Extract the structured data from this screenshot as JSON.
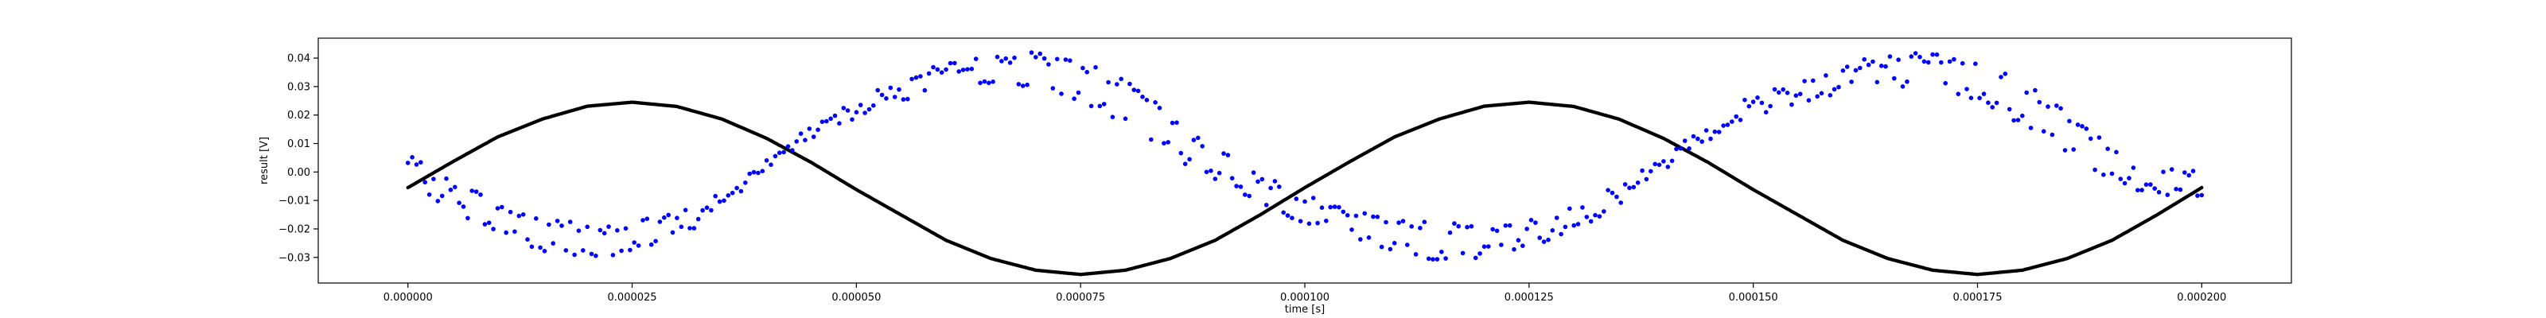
{
  "chart_data": {
    "type": "scatter",
    "title": "",
    "xlabel": "time [s]",
    "ylabel": "result [V]",
    "xlim": [
      -1e-05,
      0.00021
    ],
    "ylim": [
      -0.039,
      0.047
    ],
    "grid": false,
    "x_ticks": [
      0.0,
      2.5e-05,
      5e-05,
      7.5e-05,
      0.0001,
      0.000125,
      0.00015,
      0.000175,
      0.0002
    ],
    "x_tick_labels": [
      "0.000000",
      "0.000025",
      "0.000050",
      "0.000075",
      "0.000100",
      "0.000125",
      "0.000150",
      "0.000175",
      "0.000200"
    ],
    "y_ticks": [
      -0.03,
      -0.02,
      -0.01,
      0.0,
      0.01,
      0.02,
      0.03,
      0.04
    ],
    "y_tick_labels": [
      "−0.03",
      "−0.02",
      "−0.01",
      "0.00",
      "0.01",
      "0.02",
      "0.03",
      "0.04"
    ],
    "series": [
      {
        "color": "#000000",
        "marker_size": 2.2,
        "x": [
          0.0,
          5e-06,
          1e-05,
          1.5e-05,
          2e-05,
          2.5e-05,
          3e-05,
          3.5e-05,
          4e-05,
          4.5e-05,
          5e-05,
          5.5e-05,
          6e-05,
          6.5e-05,
          7e-05,
          7.5e-05,
          8e-05,
          8.5e-05,
          9e-05,
          9.5e-05,
          0.0001,
          0.000105,
          0.00011,
          0.000115,
          0.00012,
          0.000125,
          0.00013,
          0.000135,
          0.00014,
          0.000145,
          0.00015,
          0.000155,
          0.00016,
          0.000165,
          0.00017,
          0.000175,
          0.00018,
          0.000185,
          0.00019,
          0.000195,
          0.0002
        ],
        "y": [
          -0.0055,
          0.0036,
          0.0123,
          0.0186,
          0.0231,
          0.0245,
          0.023,
          0.0186,
          0.0118,
          0.0033,
          -0.0062,
          -0.0151,
          -0.024,
          -0.0304,
          -0.0345,
          -0.036,
          -0.0345,
          -0.0304,
          -0.024,
          -0.0151,
          -0.0055,
          0.0036,
          0.0123,
          0.0186,
          0.0231,
          0.0245,
          0.023,
          0.0186,
          0.0118,
          0.0033,
          -0.0062,
          -0.0151,
          -0.024,
          -0.0304,
          -0.0345,
          -0.036,
          -0.0345,
          -0.0304,
          -0.024,
          -0.0151,
          -0.0055
        ]
      },
      {
        "color": "#0000ff",
        "marker_size": 2.8,
        "x": [
          0.0,
          2.5e-06,
          5e-06,
          7.5e-06,
          1e-05,
          1.25e-05,
          1.5e-05,
          1.75e-05,
          2e-05,
          2.25e-05,
          2.5e-05,
          2.75e-05,
          3e-05,
          3.25e-05,
          3.5e-05,
          3.75e-05,
          4e-05,
          4.25e-05,
          4.5e-05,
          4.75e-05,
          5e-05,
          5.25e-05,
          5.5e-05,
          5.75e-05,
          6e-05,
          6.25e-05,
          6.5e-05,
          6.75e-05,
          7e-05,
          7.25e-05,
          7.5e-05,
          7.75e-05,
          8e-05,
          8.25e-05,
          8.5e-05,
          8.75e-05,
          9e-05,
          9.25e-05,
          9.5e-05,
          9.75e-05,
          0.0001,
          0.0001025,
          0.000105,
          0.0001075,
          0.00011,
          0.0001125,
          0.000115,
          0.0001175,
          0.00012,
          0.0001225,
          0.000125,
          0.0001275,
          0.00013,
          0.0001325,
          0.000135,
          0.0001375,
          0.00014,
          0.0001425,
          0.000145,
          0.0001475,
          0.00015,
          0.0001525,
          0.000155,
          0.0001575,
          0.00016,
          0.0001625,
          0.000165,
          0.0001675,
          0.00017,
          0.0001725,
          0.000175,
          0.0001775,
          0.00018,
          0.0001825,
          0.000185,
          0.0001875,
          0.00019,
          0.0001925,
          0.000195,
          0.0001975,
          0.0002
        ],
        "y": [
          -0.001,
          -0.007,
          -0.011,
          -0.016,
          -0.02,
          -0.023,
          -0.026,
          -0.027,
          -0.029,
          -0.028,
          -0.027,
          -0.024,
          -0.021,
          -0.017,
          -0.011,
          -0.005,
          0.002,
          0.008,
          0.013,
          0.018,
          0.021,
          0.024,
          0.026,
          0.028,
          0.03,
          0.031,
          0.032,
          0.032,
          0.031,
          0.029,
          0.027,
          0.023,
          0.018,
          0.013,
          0.008,
          0.003,
          -0.001,
          -0.005,
          -0.009,
          -0.013,
          -0.016,
          -0.019,
          -0.022,
          -0.024,
          -0.026,
          -0.028,
          -0.029,
          -0.029,
          -0.028,
          -0.027,
          -0.025,
          -0.022,
          -0.019,
          -0.015,
          -0.01,
          -0.004,
          0.002,
          0.008,
          0.013,
          0.018,
          0.021,
          0.024,
          0.026,
          0.028,
          0.03,
          0.031,
          0.032,
          0.032,
          0.031,
          0.029,
          0.027,
          0.023,
          0.018,
          0.013,
          0.008,
          0.003,
          -0.001,
          -0.004,
          -0.007,
          -0.008,
          -0.009
        ],
        "y_upper": [
          0.004,
          0.0,
          -0.005,
          -0.008,
          -0.012,
          -0.015,
          -0.017,
          -0.018,
          -0.019,
          -0.02,
          -0.019,
          -0.018,
          -0.016,
          -0.013,
          -0.009,
          -0.004,
          0.003,
          0.01,
          0.016,
          0.021,
          0.025,
          0.028,
          0.031,
          0.034,
          0.036,
          0.038,
          0.039,
          0.04,
          0.04,
          0.039,
          0.037,
          0.034,
          0.03,
          0.025,
          0.019,
          0.013,
          0.007,
          0.002,
          -0.002,
          -0.006,
          -0.009,
          -0.012,
          -0.014,
          -0.016,
          -0.018,
          -0.019,
          -0.02,
          -0.02,
          -0.02,
          -0.019,
          -0.018,
          -0.016,
          -0.013,
          -0.01,
          -0.006,
          -0.001,
          0.004,
          0.01,
          0.016,
          0.021,
          0.025,
          0.028,
          0.031,
          0.034,
          0.036,
          0.038,
          0.039,
          0.04,
          0.04,
          0.039,
          0.037,
          0.034,
          0.03,
          0.025,
          0.019,
          0.013,
          0.007,
          0.003,
          0.0,
          -0.001,
          -0.001
        ]
      }
    ]
  }
}
